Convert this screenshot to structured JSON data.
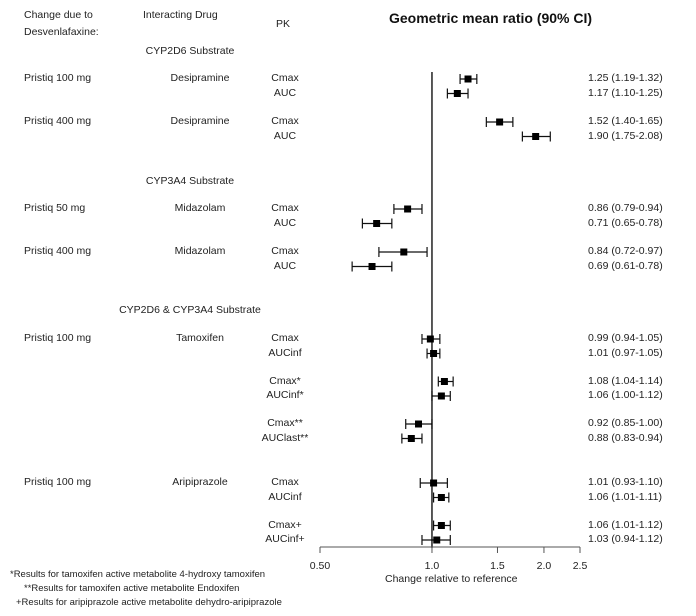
{
  "header": {
    "col_change": "Change due to Desvenlafaxine:",
    "col_change_line1": "Change due to",
    "col_change_line2": "Desvenlafaxine:",
    "col_drug": "Interacting Drug",
    "col_pk": "PK"
  },
  "chart_data": {
    "type": "forest",
    "title": "Geometric mean ratio (90% CI)",
    "xlabel": "Change relative to reference",
    "xscale": "log",
    "xlim": [
      0.5,
      2.5
    ],
    "xticks": [
      0.5,
      1.0,
      1.5,
      2.0,
      2.5
    ],
    "xtick_labels": [
      "0.50",
      "1.0",
      "1.5",
      "2.0",
      "2.5"
    ],
    "reference_line": 1.0,
    "sections": [
      {
        "label": "CYP2D6 Substrate",
        "groups": [
          {
            "dose": "Pristiq 100 mg",
            "drug": "Desipramine",
            "rows": [
              {
                "pk": "Cmax",
                "gmr": 1.25,
                "lo": 1.19,
                "hi": 1.32,
                "label": "1.25 (1.19-1.32)"
              },
              {
                "pk": "AUC",
                "gmr": 1.17,
                "lo": 1.1,
                "hi": 1.25,
                "label": "1.17 (1.10-1.25)"
              }
            ]
          },
          {
            "dose": "Pristiq 400 mg",
            "drug": "Desipramine",
            "rows": [
              {
                "pk": "Cmax",
                "gmr": 1.52,
                "lo": 1.4,
                "hi": 1.65,
                "label": "1.52 (1.40-1.65)"
              },
              {
                "pk": "AUC",
                "gmr": 1.9,
                "lo": 1.75,
                "hi": 2.08,
                "label": "1.90 (1.75-2.08)"
              }
            ]
          }
        ]
      },
      {
        "label": "CYP3A4 Substrate",
        "groups": [
          {
            "dose": "Pristiq 50 mg",
            "drug": "Midazolam",
            "rows": [
              {
                "pk": "Cmax",
                "gmr": 0.86,
                "lo": 0.79,
                "hi": 0.94,
                "label": "0.86 (0.79-0.94)"
              },
              {
                "pk": "AUC",
                "gmr": 0.71,
                "lo": 0.65,
                "hi": 0.78,
                "label": "0.71 (0.65-0.78)"
              }
            ]
          },
          {
            "dose": "Pristiq 400 mg",
            "drug": "Midazolam",
            "rows": [
              {
                "pk": "Cmax",
                "gmr": 0.84,
                "lo": 0.72,
                "hi": 0.97,
                "label": "0.84 (0.72-0.97)"
              },
              {
                "pk": "AUC",
                "gmr": 0.69,
                "lo": 0.61,
                "hi": 0.78,
                "label": "0.69 (0.61-0.78)"
              }
            ]
          }
        ]
      },
      {
        "label": "CYP2D6 & CYP3A4 Substrate",
        "groups": [
          {
            "dose": "Pristiq 100 mg",
            "drug": "Tamoxifen",
            "rows": [
              {
                "pk": "Cmax",
                "gmr": 0.99,
                "lo": 0.94,
                "hi": 1.05,
                "label": "0.99 (0.94-1.05)"
              },
              {
                "pk": "AUCinf",
                "gmr": 1.01,
                "lo": 0.97,
                "hi": 1.05,
                "label": "1.01 (0.97-1.05)"
              },
              {
                "pk": "Cmax*",
                "gmr": 1.08,
                "lo": 1.04,
                "hi": 1.14,
                "label": "1.08 (1.04-1.14)"
              },
              {
                "pk": "AUCinf*",
                "gmr": 1.06,
                "lo": 1.0,
                "hi": 1.12,
                "label": "1.06 (1.00-1.12)"
              },
              {
                "pk": "Cmax**",
                "gmr": 0.92,
                "lo": 0.85,
                "hi": 1.0,
                "label": "0.92 (0.85-1.00)"
              },
              {
                "pk": "AUClast**",
                "gmr": 0.88,
                "lo": 0.83,
                "hi": 0.94,
                "label": "0.88 (0.83-0.94)"
              }
            ]
          },
          {
            "dose": "Pristiq 100 mg",
            "drug": "Aripiprazole",
            "rows": [
              {
                "pk": "Cmax",
                "gmr": 1.01,
                "lo": 0.93,
                "hi": 1.1,
                "label": "1.01 (0.93-1.10)"
              },
              {
                "pk": "AUCinf",
                "gmr": 1.06,
                "lo": 1.01,
                "hi": 1.11,
                "label": "1.06 (1.01-1.11)"
              },
              {
                "pk": "Cmax+",
                "gmr": 1.06,
                "lo": 1.01,
                "hi": 1.12,
                "label": "1.06 (1.01-1.12)"
              },
              {
                "pk": "AUCinf+",
                "gmr": 1.03,
                "lo": 0.94,
                "hi": 1.12,
                "label": "1.03 (0.94-1.12)"
              }
            ]
          }
        ]
      }
    ]
  },
  "footnotes": [
    "*Results for tamoxifen active metabolite 4-hydroxy tamoxifen",
    "**Results for tamoxifen active metabolite Endoxifen",
    "+Results for aripiprazole active metabolite dehydro-aripiprazole"
  ]
}
